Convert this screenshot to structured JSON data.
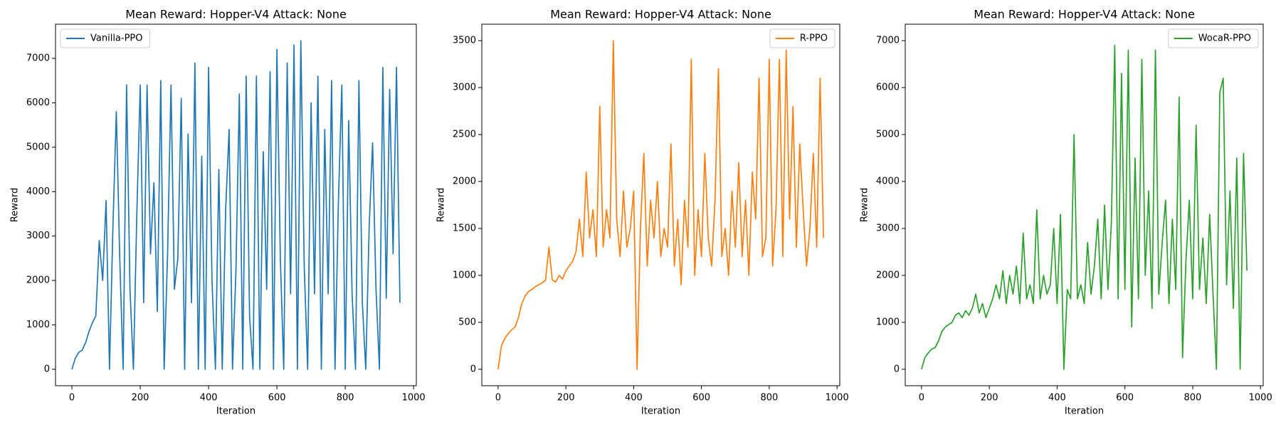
{
  "chart_data": [
    {
      "type": "line",
      "title": "Mean Reward: Hopper-V4 Attack: None",
      "x_label": "Iteration",
      "y_label": "Reward",
      "legend": "upper left",
      "x": [
        0,
        10,
        20,
        30,
        40,
        50,
        60,
        70,
        80,
        90,
        100,
        110,
        120,
        130,
        140,
        150,
        160,
        170,
        180,
        190,
        200,
        210,
        220,
        230,
        240,
        250,
        260,
        270,
        280,
        290,
        300,
        310,
        320,
        330,
        340,
        350,
        360,
        370,
        380,
        390,
        400,
        410,
        420,
        430,
        440,
        450,
        460,
        470,
        480,
        490,
        500,
        510,
        520,
        530,
        540,
        550,
        560,
        570,
        580,
        590,
        600,
        610,
        620,
        630,
        640,
        650,
        660,
        670,
        680,
        690,
        700,
        710,
        720,
        730,
        740,
        750,
        760,
        770,
        780,
        790,
        800,
        810,
        820,
        830,
        840,
        850,
        860,
        870,
        880,
        890,
        900,
        910,
        920,
        930,
        940,
        950,
        960
      ],
      "series": [
        {
          "name": "Vanilla-PPO",
          "color": "#1f77b4",
          "values": [
            0,
            250,
            380,
            430,
            600,
            850,
            1050,
            1200,
            2900,
            2000,
            3800,
            0,
            3200,
            5800,
            2500,
            0,
            6400,
            1800,
            0,
            3500,
            6400,
            1500,
            6400,
            2600,
            4200,
            1300,
            6500,
            0,
            2600,
            6400,
            1800,
            2500,
            6100,
            0,
            5300,
            1500,
            6900,
            0,
            4800,
            0,
            6800,
            2000,
            0,
            4500,
            0,
            3600,
            5400,
            0,
            2200,
            6200,
            0,
            6600,
            1200,
            0,
            6600,
            0,
            4900,
            1800,
            6700,
            0,
            7200,
            2500,
            0,
            6900,
            1700,
            7300,
            0,
            7400,
            2300,
            0,
            6000,
            1700,
            6600,
            0,
            5400,
            1700,
            6500,
            0,
            3800,
            6400,
            0,
            5600,
            1700,
            0,
            6500,
            1500,
            0,
            3200,
            5100,
            1800,
            0,
            6800,
            1600,
            6300,
            2600,
            6800,
            1500
          ]
        }
      ],
      "xlim": [
        -48,
        1008
      ],
      "xticks": [
        0,
        200,
        400,
        600,
        800,
        1000
      ],
      "ylim": [
        -370,
        7770
      ],
      "yticks": [
        0,
        1000,
        2000,
        3000,
        4000,
        5000,
        6000,
        7000
      ]
    },
    {
      "type": "line",
      "title": "Mean Reward: Hopper-V4 Attack: None",
      "x_label": "Iteration",
      "y_label": "Reward",
      "legend": "upper right",
      "x": [
        0,
        10,
        20,
        30,
        40,
        50,
        60,
        70,
        80,
        90,
        100,
        110,
        120,
        130,
        140,
        150,
        160,
        170,
        180,
        190,
        200,
        210,
        220,
        230,
        240,
        250,
        260,
        270,
        280,
        290,
        300,
        310,
        320,
        330,
        340,
        350,
        360,
        370,
        380,
        390,
        400,
        410,
        420,
        430,
        440,
        450,
        460,
        470,
        480,
        490,
        500,
        510,
        520,
        530,
        540,
        550,
        560,
        570,
        580,
        590,
        600,
        610,
        620,
        630,
        640,
        650,
        660,
        670,
        680,
        690,
        700,
        710,
        720,
        730,
        740,
        750,
        760,
        770,
        780,
        790,
        800,
        810,
        820,
        830,
        840,
        850,
        860,
        870,
        880,
        890,
        900,
        910,
        920,
        930,
        940,
        950,
        960
      ],
      "series": [
        {
          "name": "R-PPO",
          "color": "#ff7f0e",
          "values": [
            0,
            250,
            330,
            380,
            420,
            450,
            550,
            700,
            780,
            830,
            850,
            880,
            900,
            920,
            950,
            1300,
            950,
            930,
            1000,
            960,
            1050,
            1100,
            1150,
            1250,
            1600,
            1200,
            2100,
            1400,
            1700,
            1200,
            2800,
            1300,
            1700,
            1400,
            3500,
            1600,
            1200,
            1900,
            1300,
            1500,
            1900,
            0,
            1500,
            2300,
            1100,
            1800,
            1400,
            2000,
            1200,
            1500,
            1300,
            2400,
            1100,
            1600,
            900,
            1800,
            1300,
            3300,
            1000,
            1700,
            1200,
            2300,
            1400,
            1100,
            1800,
            3200,
            1200,
            1500,
            1000,
            1900,
            1300,
            2200,
            1200,
            1800,
            1000,
            2100,
            1600,
            3100,
            1200,
            1400,
            3300,
            1100,
            1700,
            3300,
            1200,
            3400,
            1600,
            2800,
            1300,
            2400,
            1700,
            1100,
            1500,
            2300,
            1300,
            3100,
            1400
          ]
        }
      ],
      "xlim": [
        -48,
        1008
      ],
      "xticks": [
        0,
        200,
        400,
        600,
        800,
        1000
      ],
      "ylim": [
        -175,
        3675
      ],
      "yticks": [
        0,
        500,
        1000,
        1500,
        2000,
        2500,
        3000,
        3500
      ]
    },
    {
      "type": "line",
      "title": "Mean Reward: Hopper-V4 Attack: None",
      "x_label": "Iteration",
      "y_label": "Reward",
      "legend": "upper right",
      "x": [
        0,
        10,
        20,
        30,
        40,
        50,
        60,
        70,
        80,
        90,
        100,
        110,
        120,
        130,
        140,
        150,
        160,
        170,
        180,
        190,
        200,
        210,
        220,
        230,
        240,
        250,
        260,
        270,
        280,
        290,
        300,
        310,
        320,
        330,
        340,
        350,
        360,
        370,
        380,
        390,
        400,
        410,
        420,
        430,
        440,
        450,
        460,
        470,
        480,
        490,
        500,
        510,
        520,
        530,
        540,
        550,
        560,
        570,
        580,
        590,
        600,
        610,
        620,
        630,
        640,
        650,
        660,
        670,
        680,
        690,
        700,
        710,
        720,
        730,
        740,
        750,
        760,
        770,
        780,
        790,
        800,
        810,
        820,
        830,
        840,
        850,
        860,
        870,
        880,
        890,
        900,
        910,
        920,
        930,
        940,
        950,
        960
      ],
      "series": [
        {
          "name": "WocaR-PPO",
          "color": "#2ca02c",
          "values": [
            0,
            250,
            350,
            430,
            460,
            600,
            800,
            900,
            950,
            1000,
            1150,
            1200,
            1100,
            1250,
            1150,
            1300,
            1600,
            1200,
            1400,
            1100,
            1300,
            1500,
            1800,
            1500,
            2100,
            1400,
            2000,
            1600,
            2200,
            1400,
            2900,
            1500,
            1800,
            1400,
            3400,
            1500,
            2000,
            1600,
            1800,
            3000,
            1400,
            3300,
            0,
            1700,
            1500,
            5000,
            1500,
            1800,
            1400,
            2700,
            1600,
            2200,
            3200,
            1500,
            3500,
            1700,
            3100,
            6900,
            1500,
            6300,
            1700,
            6800,
            900,
            4500,
            1500,
            6600,
            2000,
            3800,
            1300,
            6800,
            1600,
            2700,
            3600,
            1400,
            3200,
            1700,
            5800,
            250,
            2300,
            3600,
            1500,
            5200,
            1700,
            2800,
            1400,
            3300,
            1600,
            0,
            5900,
            6200,
            1800,
            3800,
            1300,
            4500,
            0,
            4600,
            2100
          ]
        }
      ],
      "xlim": [
        -48,
        1008
      ],
      "xticks": [
        0,
        200,
        400,
        600,
        800,
        1000
      ],
      "ylim": [
        -350,
        7350
      ],
      "yticks": [
        0,
        1000,
        2000,
        3000,
        4000,
        5000,
        6000,
        7000
      ]
    }
  ]
}
